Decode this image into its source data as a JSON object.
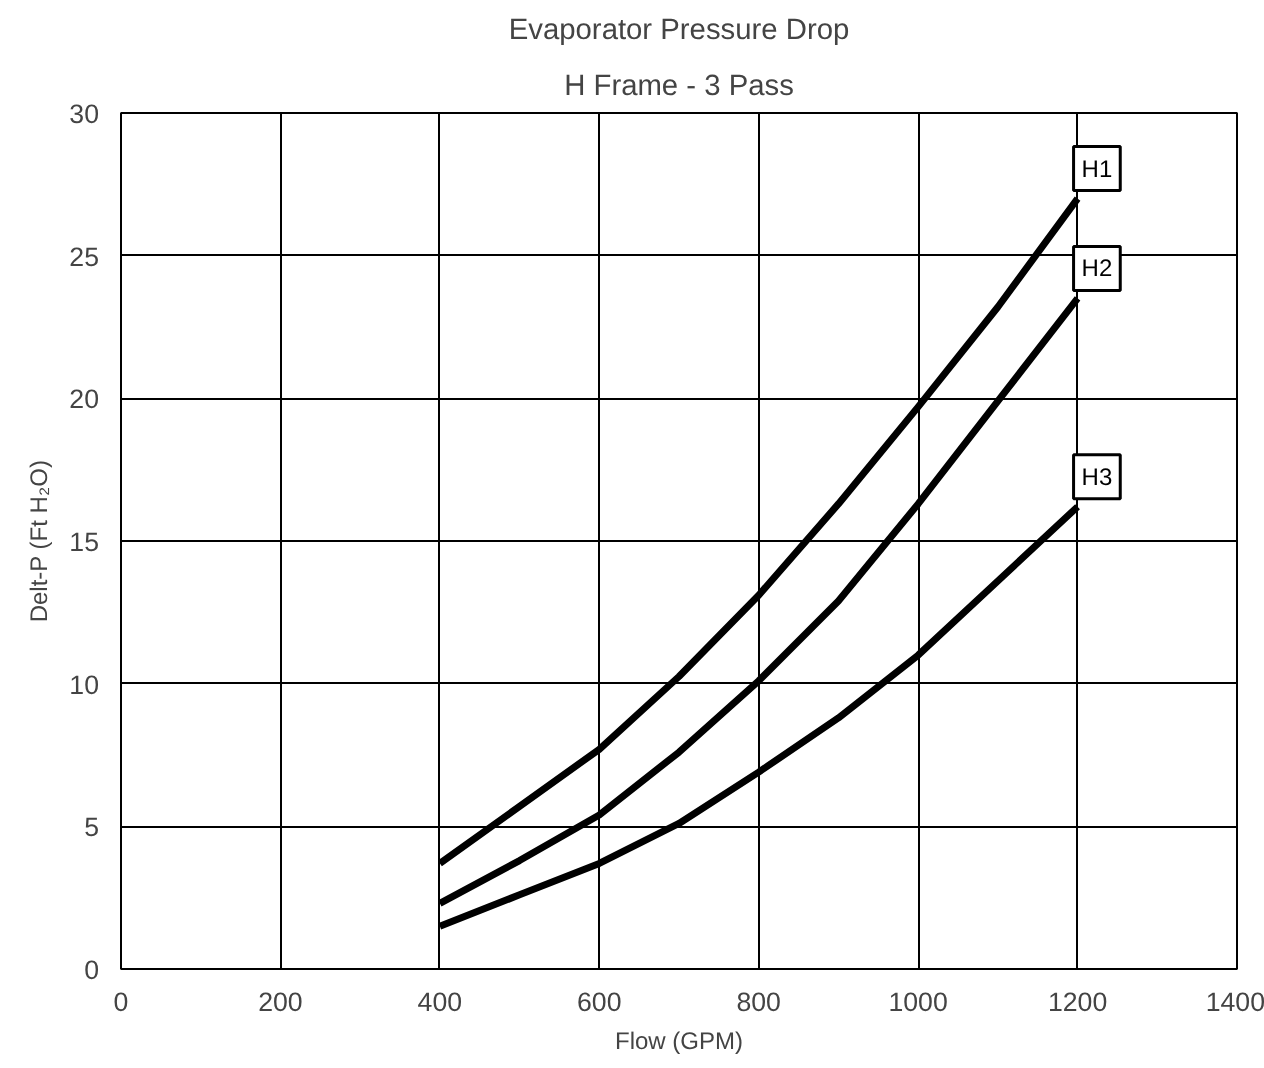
{
  "chart_data": {
    "type": "line",
    "title": "Evaporator Pressure Drop",
    "subtitle": "H Frame - 3 Pass",
    "xlabel": "Flow (GPM)",
    "ylabel": "Delt-P (Ft H₂O)",
    "x": [
      400,
      500,
      600,
      700,
      800,
      900,
      1000,
      1100,
      1200
    ],
    "series": [
      {
        "name": "H1",
        "color": "#000000",
        "values": [
          3.7,
          5.7,
          7.7,
          10.25,
          13.1,
          16.3,
          19.7,
          23.2,
          27.0
        ]
      },
      {
        "name": "H2",
        "color": "#000000",
        "values": [
          2.3,
          3.8,
          5.4,
          7.6,
          10.1,
          12.9,
          16.3,
          19.9,
          23.5
        ]
      },
      {
        "name": "H3",
        "color": "#000000",
        "values": [
          1.5,
          2.6,
          3.7,
          5.1,
          6.9,
          8.8,
          11.0,
          13.6,
          16.2
        ]
      }
    ],
    "xlim": [
      0,
      1400
    ],
    "xticks": [
      0,
      200,
      400,
      600,
      800,
      1000,
      1200,
      1400
    ],
    "ylim": [
      0,
      30
    ],
    "yticks": [
      0,
      5,
      10,
      15,
      20,
      25,
      30
    ],
    "grid": true,
    "marker": "none",
    "line_style": "solid"
  }
}
